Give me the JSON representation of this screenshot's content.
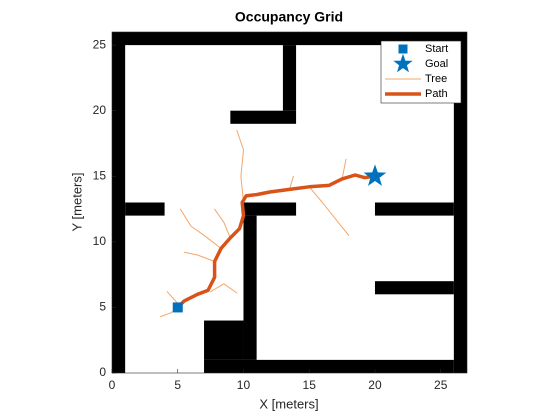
{
  "chart_data": {
    "type": "line",
    "title": "Occupancy Grid",
    "x_label": "X [meters]",
    "y_label": "Y [meters]",
    "xlim": [
      0,
      27
    ],
    "ylim": [
      0,
      26
    ],
    "xticks": [
      0,
      5,
      10,
      15,
      20,
      25
    ],
    "yticks": [
      0,
      5,
      10,
      15,
      20,
      25
    ],
    "grid": false,
    "legend_position": "northeast",
    "occupied_color": "#000000",
    "occupied": [
      [
        0,
        0,
        1,
        26
      ],
      [
        26,
        0,
        27,
        26
      ],
      [
        0,
        25,
        27,
        26
      ],
      [
        7,
        0,
        26,
        1
      ],
      [
        13,
        20,
        14,
        25
      ],
      [
        9,
        19,
        14,
        20
      ],
      [
        1,
        12,
        4,
        13
      ],
      [
        10,
        12,
        14,
        13
      ],
      [
        10,
        1,
        11,
        12
      ],
      [
        7,
        1,
        10,
        4
      ],
      [
        20,
        12,
        26,
        13
      ],
      [
        20,
        6,
        26,
        7
      ]
    ],
    "series": [
      {
        "name": "Start",
        "color": "#0072bd",
        "marker": "square",
        "x": [
          5
        ],
        "values": [
          5
        ]
      },
      {
        "name": "Goal",
        "color": "#0072bd",
        "marker": "star",
        "x": [
          20
        ],
        "values": [
          15
        ]
      },
      {
        "name": "Tree",
        "color": "#f4a56a",
        "line_width": 1,
        "x": [
          5,
          4.5,
          3.7,
          null,
          5,
          4.2,
          null,
          7.5,
          8.5,
          9.5,
          null,
          7.8,
          6.5,
          5.5,
          null,
          8.3,
          7,
          6,
          5.2,
          null,
          9,
          8.5,
          7.8,
          null,
          10,
          9.8,
          10,
          9.5,
          null,
          15,
          16,
          17.2,
          18,
          null,
          17.5,
          17.8,
          null,
          13.5,
          13.8
        ],
        "values": [
          5,
          4.6,
          4.3,
          null,
          5.3,
          6.2,
          null,
          6.2,
          6.8,
          6.1,
          null,
          8.5,
          9,
          9.2,
          null,
          9.5,
          10.5,
          11.2,
          12.5,
          null,
          10.3,
          11.5,
          12.5,
          null,
          13,
          15,
          17,
          18.5,
          null,
          14.2,
          13,
          11.5,
          10.5,
          null,
          14.8,
          16.3,
          null,
          14,
          15
        ]
      },
      {
        "name": "Path",
        "color": "#d95319",
        "line_width": 3.5,
        "x": [
          5,
          5.5,
          6.5,
          7.3,
          7.8,
          7.8,
          8.3,
          9,
          9.7,
          10,
          9.9,
          10.2,
          11,
          12,
          13.5,
          15,
          16.5,
          17.5,
          18.5,
          19.2,
          20
        ],
        "values": [
          5,
          5.5,
          6,
          6.3,
          7.3,
          8.5,
          9.5,
          10.3,
          11,
          12,
          13,
          13.5,
          13.6,
          13.8,
          14,
          14.2,
          14.3,
          14.8,
          15.1,
          14.9,
          15
        ]
      }
    ]
  }
}
